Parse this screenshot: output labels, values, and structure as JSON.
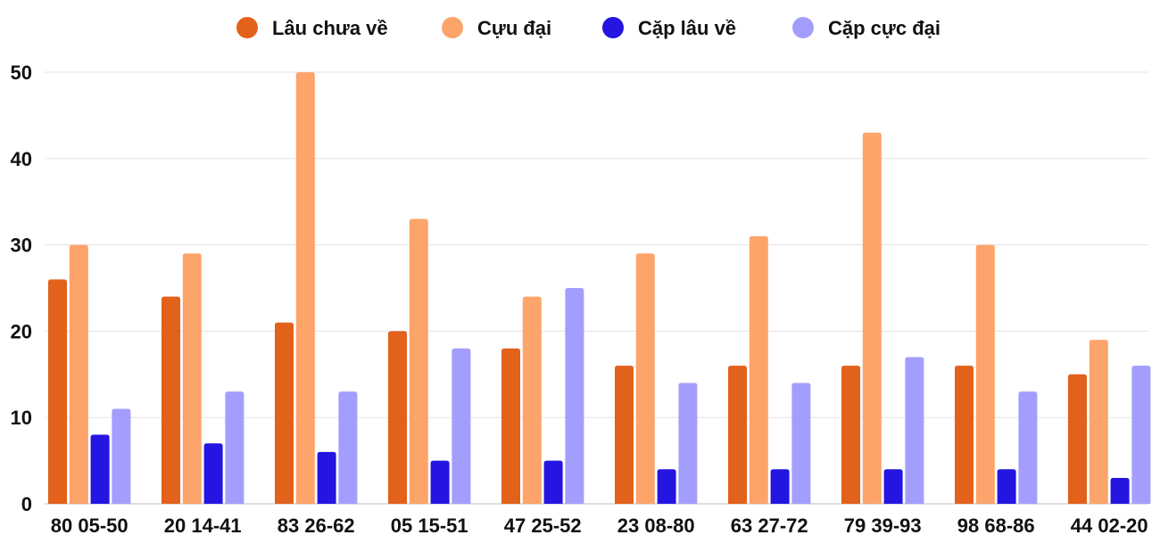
{
  "chart_data": {
    "type": "bar",
    "categories": [
      "80 05-50",
      "20 14-41",
      "83 26-62",
      "05 15-51",
      "47 25-52",
      "23 08-80",
      "63 27-72",
      "79 39-93",
      "98 68-86",
      "44 02-20"
    ],
    "series": [
      {
        "name": "Lâu chưa về",
        "color": "#e2611b",
        "values": [
          26,
          24,
          21,
          20,
          18,
          16,
          16,
          16,
          16,
          15
        ]
      },
      {
        "name": "Cựu đại",
        "color": "#fda46b",
        "values": [
          30,
          29,
          50,
          33,
          24,
          29,
          31,
          43,
          30,
          19
        ]
      },
      {
        "name": "Cặp lâu về",
        "color": "#2415e0",
        "values": [
          8,
          7,
          6,
          5,
          5,
          4,
          4,
          4,
          4,
          3
        ]
      },
      {
        "name": "Cặp cực đại",
        "color": "#a39efd",
        "values": [
          11,
          13,
          13,
          18,
          25,
          14,
          14,
          17,
          13,
          16
        ]
      }
    ],
    "ylim": [
      0,
      50
    ],
    "yticks": [
      "0",
      "10",
      "20",
      "30",
      "40",
      "50"
    ],
    "grid": true,
    "legend_position": "top-center",
    "title": "",
    "xlabel": "",
    "ylabel": ""
  }
}
